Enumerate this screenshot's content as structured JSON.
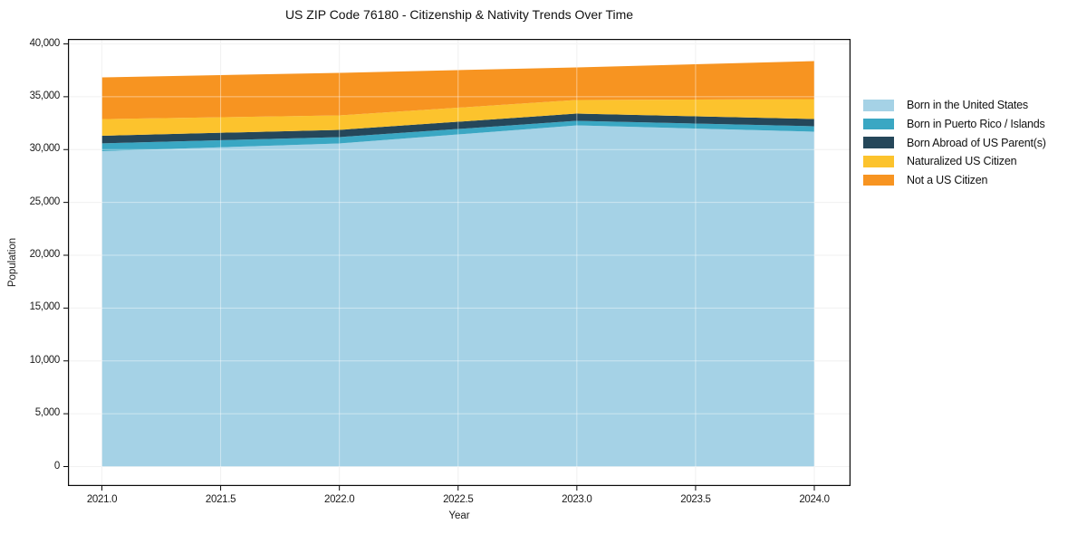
{
  "chart_data": {
    "type": "area",
    "stacked": true,
    "title": "US ZIP Code 76180 - Citizenship & Nativity Trends Over Time",
    "xlabel": "Year",
    "ylabel": "Population",
    "x": [
      2021,
      2022,
      2023,
      2024
    ],
    "series": [
      {
        "name": "Born in the United States",
        "color": "#a5d2e6",
        "values": [
          29850,
          30580,
          32290,
          31690
        ]
      },
      {
        "name": "Born in Puerto Rico / Islands",
        "color": "#3aa7c3",
        "values": [
          740,
          600,
          430,
          515
        ]
      },
      {
        "name": "Born Abroad of US Parent(s)",
        "color": "#25475a",
        "values": [
          720,
          685,
          685,
          685
        ]
      },
      {
        "name": "Naturalized US Citizen",
        "color": "#fcc32d",
        "values": [
          1570,
          1370,
          1285,
          1885
        ]
      },
      {
        "name": "Not a US Citizen",
        "color": "#f79421",
        "values": [
          3950,
          4025,
          3085,
          3595
        ]
      }
    ],
    "totals": [
      36830,
      37260,
      37775,
      38370
    ],
    "ylim": [
      0,
      40000
    ],
    "xlim": [
      2020.85,
      2024.15
    ],
    "x_tick_values": [
      2021.0,
      2021.5,
      2022.0,
      2022.5,
      2023.0,
      2023.5,
      2024.0
    ],
    "x_tick_labels": [
      "2021.0",
      "2021.5",
      "2022.0",
      "2022.5",
      "2023.0",
      "2023.5",
      "2024.0"
    ],
    "y_tick_values": [
      0,
      5000,
      10000,
      15000,
      20000,
      25000,
      30000,
      35000,
      40000
    ],
    "y_tick_labels": [
      "0",
      "5,000",
      "10,000",
      "15,000",
      "20,000",
      "25,000",
      "30,000",
      "35,000",
      "40,000"
    ],
    "legend_position": "right",
    "grid": true,
    "grid_color": "#e8e8e8",
    "spine_color": "#0a0a0a",
    "background_color": "#ffffff"
  }
}
